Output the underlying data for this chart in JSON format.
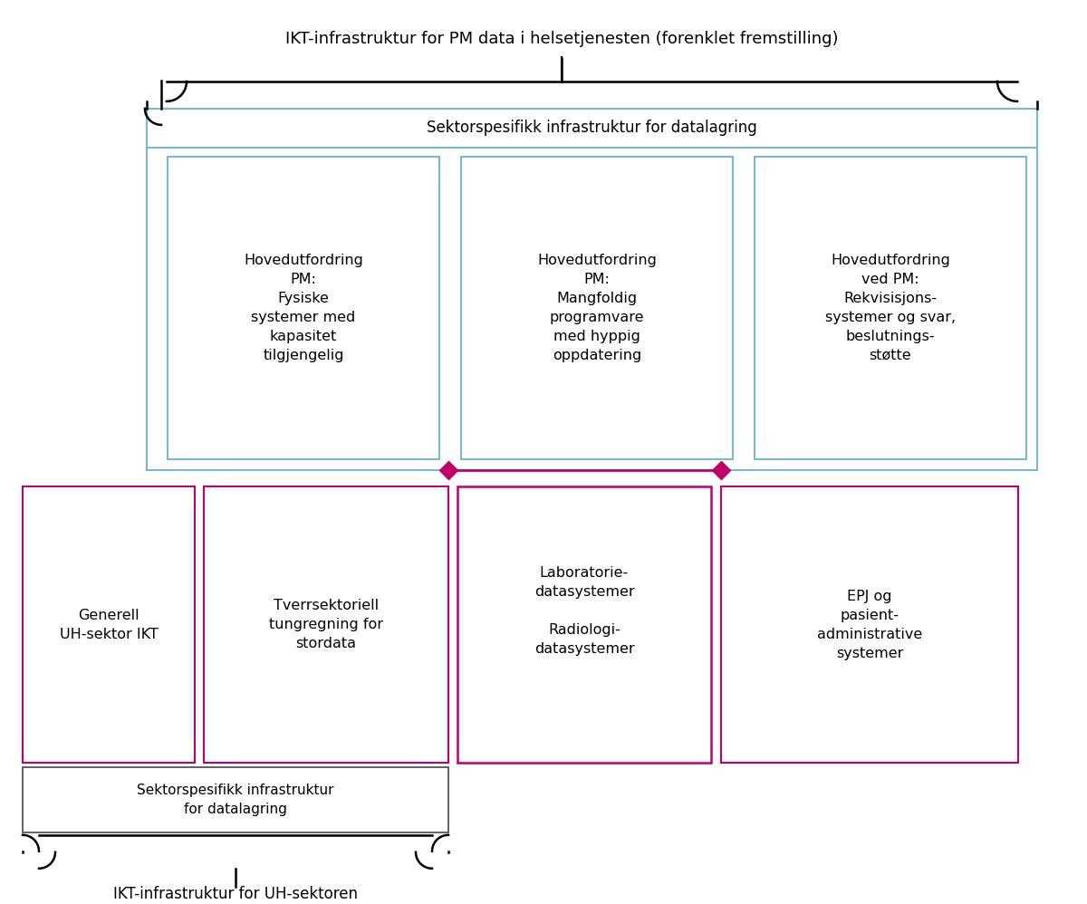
{
  "title_top": "IKT-infrastruktur for PM data i helsetjenesten (forenklet fremstilling)",
  "title_bottom": "IKT-infrastruktur for UH-sektoren",
  "bg_color": "#ffffff",
  "blue_color": "#a8d4e0",
  "blue_box_color": "#c8e6f0",
  "magenta_color": "#c0006a",
  "magenta_light": "#d4006e",
  "box_outline_blue": "#7ab8cc",
  "box_outline_magenta": "#c0006a",
  "box_outline_gray": "#888888",
  "sector_infra_top_label": "Sektorspesifikk infrastruktur for datalagring",
  "sector_infra_bottom_label": "Sektorspesifikk infrastruktur\nfor datalagring",
  "box1_label": "Hovedutfordring\nPM:\nFysiske\nsystemer med\nkapasitet\ntilgjengelig",
  "box2_label": "Hovedutfordring\nPM:\nMangfoldig\nprogramvare\nmed hyppig\noppdatering",
  "box3_label": "Hovedutfordring\nved PM:\nRekvisisjons-\nsystemer og svar,\nbeslutnings-\nstøtte",
  "box4_label": "Generell\nUH-sektor IKT",
  "box5_label": "Tverrsektoriell\ntungregning for\nstordata",
  "box6_label": "Laboratorie-\ndatasystemer\n\nRadiologi-\ndatasystemer",
  "box7_label": "EPJ og\npasient-\nadministrative\nsystemer"
}
